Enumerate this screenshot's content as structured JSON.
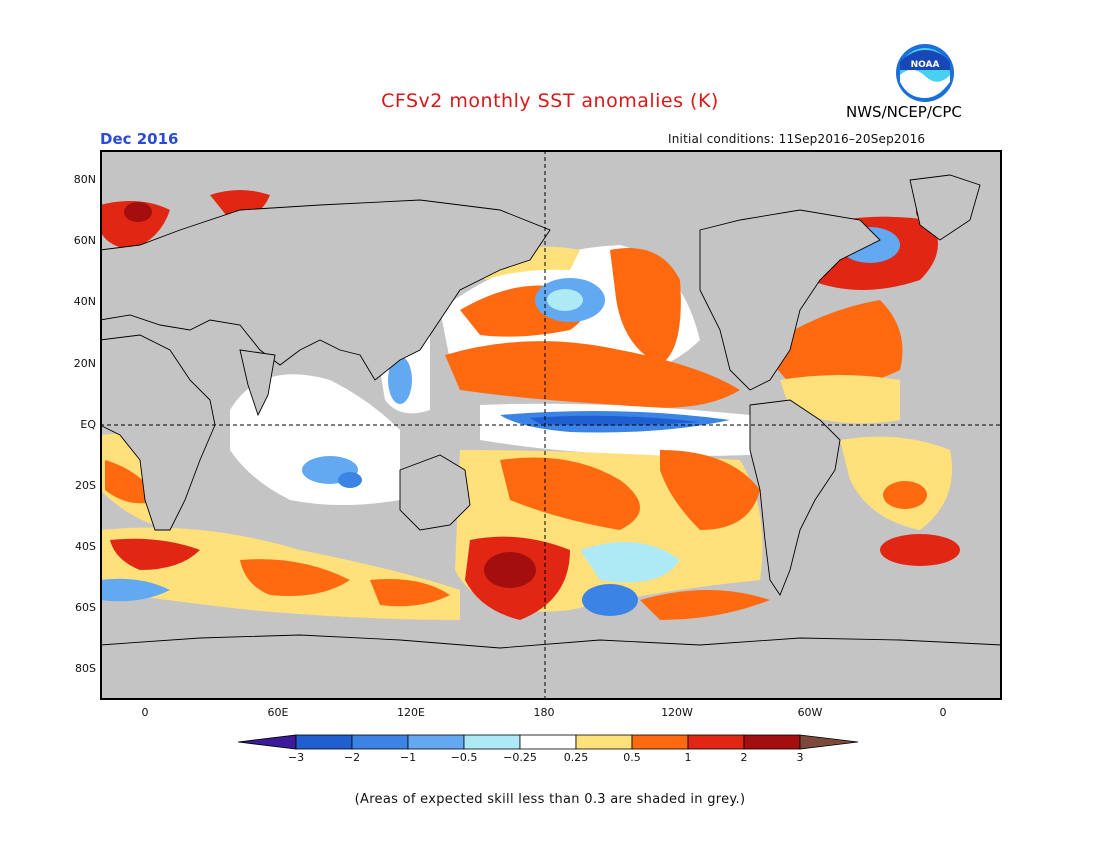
{
  "header": {
    "title": "CFSv2 monthly SST anomalies (K)",
    "agency": "NWS/NCEP/CPC",
    "logo_text": "NOAA",
    "month": "Dec 2016",
    "initial_conditions": "Initial conditions: 11Sep2016–20Sep2016"
  },
  "map": {
    "projection": "equirectangular",
    "lon_range": [
      -20,
      380
    ],
    "lat_range": [
      -90,
      90
    ],
    "lat_ticks": [
      "80N",
      "60N",
      "40N",
      "20N",
      "EQ",
      "20S",
      "40S",
      "60S",
      "80S"
    ],
    "lon_ticks": [
      "0",
      "60E",
      "120E",
      "180",
      "120W",
      "60W",
      "0"
    ],
    "reference_lines": [
      "equator",
      "180"
    ],
    "land_color": "#c4c4c4",
    "low_skill_color": "#c4c4c4"
  },
  "legend": {
    "labels": [
      "−3",
      "−2",
      "−1",
      "−0.5",
      "−0.25",
      "0.25",
      "0.5",
      "1",
      "2",
      "3"
    ],
    "colors": [
      "#3c1a99",
      "#1f5fd0",
      "#3b84e6",
      "#62a9f2",
      "#aeeaf5",
      "#ffffff",
      "#ffe07a",
      "#ff6a10",
      "#e12713",
      "#a50e0e",
      "#7b4a3a"
    ],
    "note": "(Areas of expected skill less than 0.3 are shaded in grey.)"
  }
}
